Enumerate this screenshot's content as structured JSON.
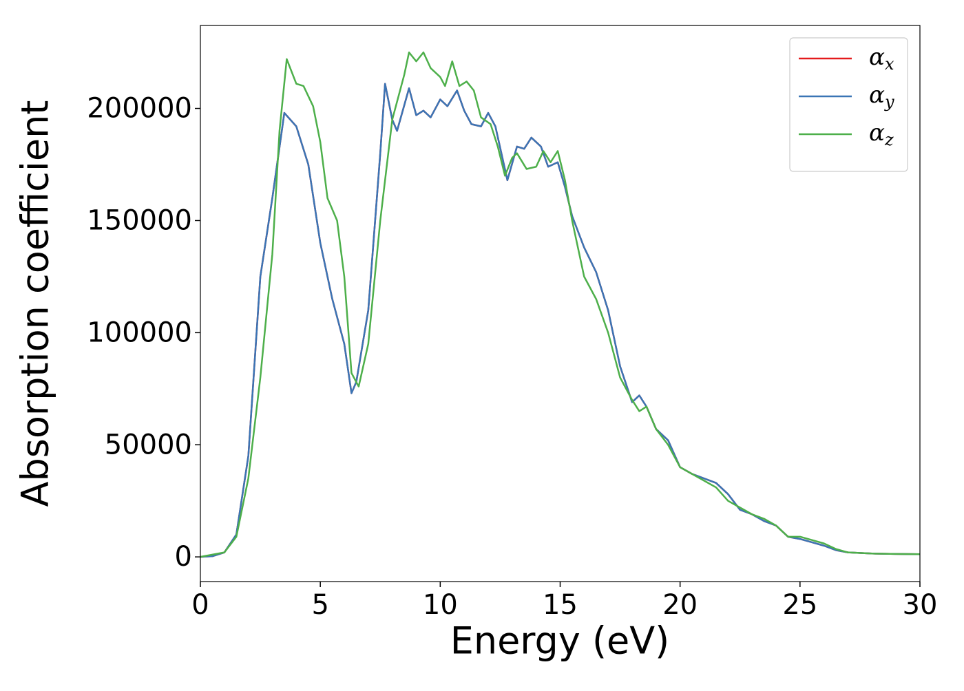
{
  "chart_data": {
    "type": "line",
    "x_label": "Energy (eV)",
    "y_label": "Absorption coefficient",
    "xlim": [
      0,
      30
    ],
    "ylim": [
      -11000,
      237000
    ],
    "xticks": [
      0,
      5,
      10,
      15,
      20,
      25,
      30
    ],
    "yticks": [
      0,
      50000,
      100000,
      150000,
      200000
    ],
    "legend": "upper right",
    "series": [
      {
        "name": "αx",
        "color": "#e41a1c",
        "x": [
          0,
          0.5,
          1,
          1.5,
          2,
          2.5,
          3,
          3.5,
          4,
          4.5,
          5,
          5.5,
          6,
          6.3,
          6.5,
          7,
          7.5,
          7.7,
          8,
          8.2,
          8.7,
          9,
          9.3,
          9.6,
          10,
          10.3,
          10.7,
          11,
          11.3,
          11.7,
          12,
          12.3,
          12.8,
          13.2,
          13.5,
          13.8,
          14.2,
          14.5,
          14.9,
          15.2,
          15.5,
          16,
          16.5,
          17,
          17.5,
          18,
          18.3,
          18.6,
          19,
          19.5,
          20,
          20.5,
          21,
          21.5,
          22,
          22.5,
          23,
          23.5,
          24,
          24.5,
          25,
          25.5,
          26,
          26.5,
          27,
          28,
          29,
          30
        ],
        "values": [
          0,
          300,
          2000,
          10000,
          45000,
          125000,
          160000,
          198000,
          192000,
          175000,
          140000,
          115000,
          95000,
          73000,
          78000,
          110000,
          180000,
          211000,
          195000,
          190000,
          209000,
          197000,
          199000,
          196000,
          204000,
          201000,
          208000,
          199000,
          193000,
          192000,
          198000,
          192000,
          168000,
          183000,
          182000,
          187000,
          183000,
          174000,
          176000,
          165000,
          152000,
          138000,
          127000,
          110000,
          85000,
          69000,
          72000,
          67000,
          57000,
          52000,
          40000,
          37000,
          35000,
          33000,
          28000,
          21000,
          19000,
          16000,
          14000,
          9000,
          8000,
          6500,
          5000,
          3000,
          2000,
          1500,
          1300,
          1200
        ]
      },
      {
        "name": "αy",
        "color": "#3a75b5",
        "x": [
          0,
          0.5,
          1,
          1.5,
          2,
          2.5,
          3,
          3.5,
          4,
          4.5,
          5,
          5.5,
          6,
          6.3,
          6.5,
          7,
          7.5,
          7.7,
          8,
          8.2,
          8.7,
          9,
          9.3,
          9.6,
          10,
          10.3,
          10.7,
          11,
          11.3,
          11.7,
          12,
          12.3,
          12.8,
          13.2,
          13.5,
          13.8,
          14.2,
          14.5,
          14.9,
          15.2,
          15.5,
          16,
          16.5,
          17,
          17.5,
          18,
          18.3,
          18.6,
          19,
          19.5,
          20,
          20.5,
          21,
          21.5,
          22,
          22.5,
          23,
          23.5,
          24,
          24.5,
          25,
          25.5,
          26,
          26.5,
          27,
          28,
          29,
          30
        ],
        "values": [
          0,
          300,
          2000,
          10000,
          45000,
          125000,
          160000,
          198000,
          192000,
          175000,
          140000,
          115000,
          95000,
          73000,
          78000,
          110000,
          180000,
          211000,
          195000,
          190000,
          209000,
          197000,
          199000,
          196000,
          204000,
          201000,
          208000,
          199000,
          193000,
          192000,
          198000,
          192000,
          168000,
          183000,
          182000,
          187000,
          183000,
          174000,
          176000,
          165000,
          152000,
          138000,
          127000,
          110000,
          85000,
          69000,
          72000,
          67000,
          57000,
          52000,
          40000,
          37000,
          35000,
          33000,
          28000,
          21000,
          19000,
          16000,
          14000,
          9000,
          8000,
          6500,
          5000,
          3000,
          2000,
          1500,
          1300,
          1200
        ]
      },
      {
        "name": "αz",
        "color": "#4daf4a",
        "x": [
          0,
          1,
          1.5,
          2,
          2.5,
          3,
          3.3,
          3.6,
          4,
          4.3,
          4.7,
          5,
          5.3,
          5.7,
          6,
          6.3,
          6.6,
          7,
          7.5,
          8,
          8.5,
          8.7,
          9,
          9.3,
          9.6,
          10,
          10.2,
          10.5,
          10.8,
          11.1,
          11.4,
          11.7,
          12.1,
          12.4,
          12.7,
          13,
          13.2,
          13.6,
          14,
          14.3,
          14.6,
          14.9,
          15.2,
          15.5,
          16,
          16.5,
          17,
          17.5,
          18,
          18.3,
          18.6,
          19,
          19.5,
          20,
          20.5,
          21,
          21.5,
          22,
          22.5,
          23,
          23.5,
          24,
          24.5,
          25,
          25.5,
          26,
          26.5,
          27,
          28,
          29,
          30
        ],
        "values": [
          0,
          2000,
          9000,
          35000,
          80000,
          135000,
          190000,
          222000,
          211000,
          210000,
          201000,
          185000,
          160000,
          150000,
          125000,
          82000,
          76000,
          95000,
          150000,
          195000,
          215000,
          225000,
          221000,
          225000,
          218000,
          214000,
          210000,
          221000,
          210000,
          212000,
          208000,
          196000,
          193000,
          183000,
          170000,
          178000,
          180000,
          173000,
          174000,
          181000,
          176000,
          181000,
          168000,
          150000,
          125000,
          115000,
          100000,
          80000,
          70000,
          65000,
          67000,
          57000,
          50000,
          40000,
          37000,
          34000,
          31000,
          25000,
          22000,
          19000,
          17000,
          14000,
          9000,
          9000,
          7500,
          6000,
          3500,
          2000,
          1500,
          1300,
          1200
        ]
      }
    ]
  }
}
